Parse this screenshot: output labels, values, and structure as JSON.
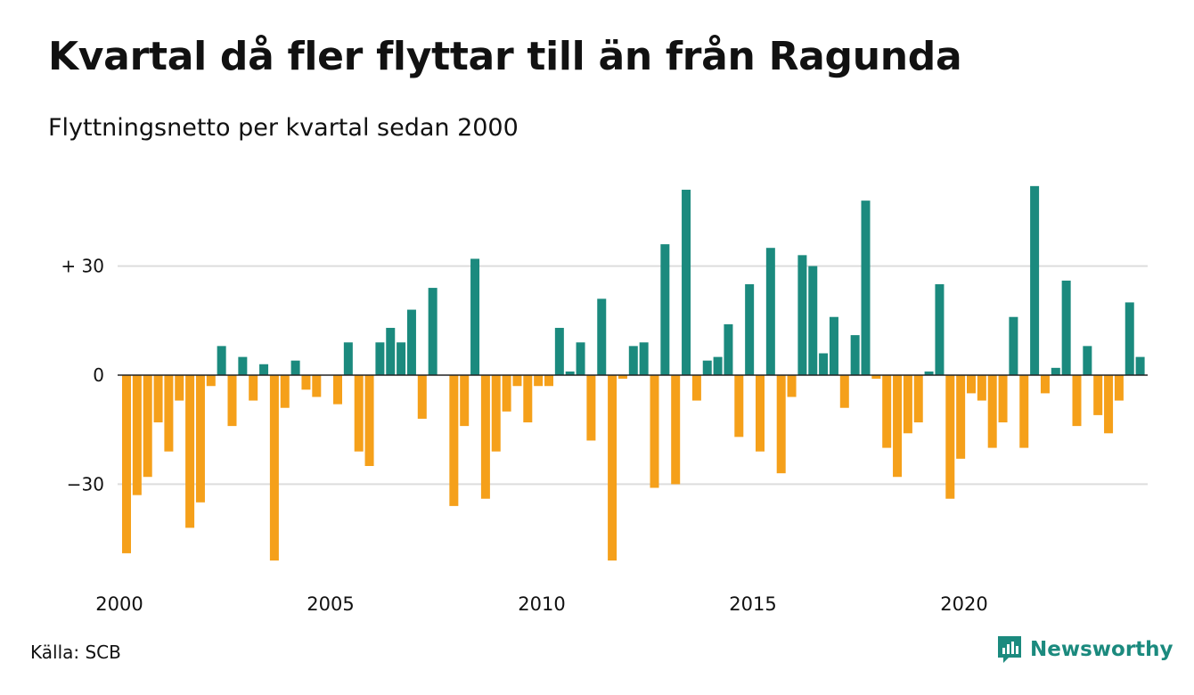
{
  "header": {
    "title": "Kvartal då fler flyttar till än från Ragunda",
    "subtitle": "Flyttningsnetto per kvartal sedan 2000"
  },
  "footer": {
    "source": "Källa: SCB",
    "brand": "Newsworthy"
  },
  "colors": {
    "positive": "#1b8a7e",
    "negative": "#f5a01a",
    "grid": "#dddddd",
    "brand": "#1b8a7e"
  },
  "chart_data": {
    "type": "bar",
    "xlabel": "",
    "ylabel": "",
    "ylim": [
      -52,
      52
    ],
    "yticks": [
      {
        "value": 30,
        "label": "+ 30"
      },
      {
        "value": 0,
        "label": "0"
      },
      {
        "value": -30,
        "label": "−30"
      }
    ],
    "xticks": [
      {
        "year": 2000,
        "label": "2000"
      },
      {
        "year": 2005,
        "label": "2005"
      },
      {
        "year": 2010,
        "label": "2010"
      },
      {
        "year": 2015,
        "label": "2015"
      },
      {
        "year": 2020,
        "label": "2020"
      }
    ],
    "start": "2000 Q1",
    "grid": true,
    "values": [
      -49,
      -33,
      -28,
      -13,
      -21,
      -7,
      -42,
      -35,
      -3,
      8,
      -14,
      5,
      -7,
      3,
      -51,
      -9,
      4,
      -4,
      -6,
      0,
      -8,
      9,
      -21,
      -25,
      9,
      13,
      9,
      18,
      -12,
      24,
      0,
      -36,
      -14,
      32,
      -34,
      -21,
      -10,
      -3,
      -13,
      -3,
      -3,
      13,
      1,
      9,
      -18,
      21,
      -51,
      -1,
      8,
      9,
      -31,
      36,
      -30,
      51,
      -7,
      4,
      5,
      14,
      -17,
      25,
      -21,
      35,
      -27,
      -6,
      33,
      30,
      6,
      16,
      -9,
      11,
      48,
      -1,
      -20,
      -28,
      -16,
      -13,
      1,
      25,
      -34,
      -23,
      -5,
      -7,
      -20,
      -13,
      16,
      -20,
      52,
      -5,
      2,
      26,
      -14,
      8,
      -11,
      -16,
      -7,
      20,
      5
    ]
  }
}
